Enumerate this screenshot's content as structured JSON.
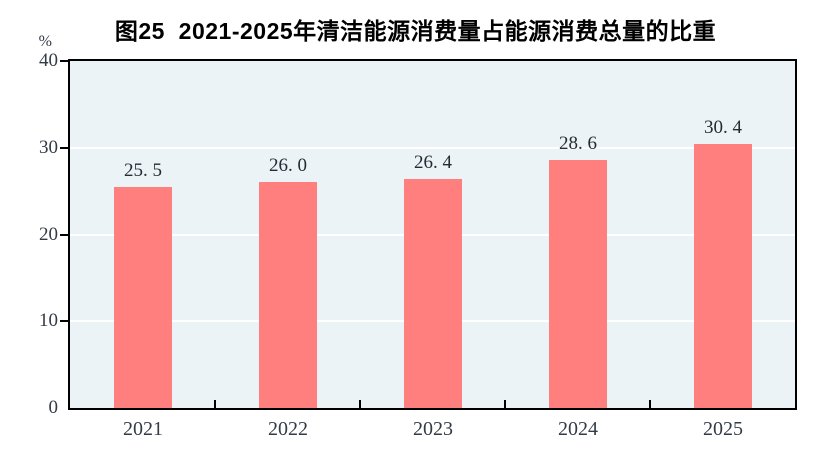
{
  "title": "图25  2021-2025年清洁能源消费量占能源消费总量的比重",
  "unit_label": "%",
  "colors": {
    "bar": "#FF7F7F",
    "plot_bg": "#ECF3F7",
    "grid": "#FFFFFF",
    "axis": "#000000",
    "tick_text": "#333B46",
    "value_text": "#262B33",
    "title_text": "#000000",
    "page_bg": "#FFFFFF"
  },
  "chart_data": {
    "type": "bar",
    "title": "图25  2021-2025年清洁能源消费量占能源消费总量的比重",
    "categories": [
      "2021",
      "2022",
      "2023",
      "2024",
      "2025"
    ],
    "values": [
      25.5,
      26.0,
      26.4,
      28.6,
      30.4
    ],
    "value_labels": [
      "25. 5",
      "26. 0",
      "26. 4",
      "28. 6",
      "30. 4"
    ],
    "xlabel": "",
    "ylabel": "%",
    "ylim": [
      0,
      40
    ],
    "yticks": [
      0,
      10,
      20,
      30,
      40
    ],
    "grid": "horizontal-white",
    "legend": "none",
    "bar_color": "#FF7F7F"
  }
}
